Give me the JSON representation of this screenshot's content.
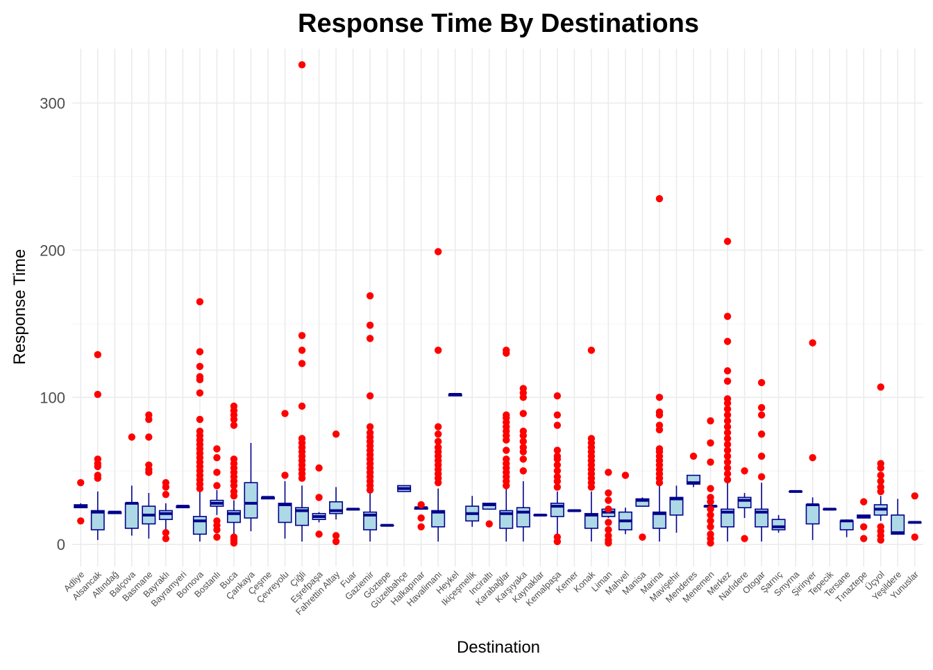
{
  "chart_data": {
    "type": "boxplot",
    "title": "Response Time By Destinations",
    "xlabel": "Destination",
    "ylabel": "Response Time",
    "ylim": [
      -15,
      337
    ],
    "yticks": [
      0,
      100,
      200,
      300
    ],
    "grid": true,
    "colors": {
      "box_fill": "#add8e6",
      "box_line": "#00008b",
      "outlier": "#ff0000",
      "grid": "#ebebeb",
      "background": "#ffffff"
    },
    "categories": [
      "Adliye",
      "Alsancak",
      "Altındağ",
      "Balçova",
      "Basmane",
      "Bayraklı",
      "Bayramyeri",
      "Bornova",
      "Bostanlı",
      "Buca",
      "Çankaya",
      "Çeşme",
      "Çevreyolu",
      "Çiğli",
      "Eşrefpaşa",
      "Fahrettin Altay",
      "Fuar",
      "Gaziemir",
      "Göztepe",
      "Güzelbahçe",
      "Halkapınar",
      "Havalimanı",
      "Heykel",
      "Ikiçeşmelik",
      "Inciraltı",
      "Karabağlar",
      "Karşıyaka",
      "Kaynaklar",
      "Kemalpaşa",
      "Kemer",
      "Konak",
      "Liman",
      "Mahvel",
      "Manisa",
      "Marina",
      "Mavişehir",
      "Menderes",
      "Menemen",
      "Merkez",
      "Narlıdere",
      "Otogar",
      "Şarnıç",
      "Smyrna",
      "Şirinyer",
      "Tepecik",
      "Tersane",
      "Tınaztepe",
      "Üçyol",
      "Yeşildere",
      "Yunuslar"
    ],
    "boxes": [
      {
        "min": 25,
        "q1": 25,
        "median": 26,
        "q3": 27,
        "max": 28,
        "outliers": [
          16,
          42
        ]
      },
      {
        "min": 3,
        "q1": 10,
        "median": 22,
        "q3": 23,
        "max": 36,
        "outliers": [
          45,
          47,
          53,
          55,
          58,
          102,
          129
        ]
      },
      {
        "min": 21,
        "q1": 21,
        "median": 22,
        "q3": 22,
        "max": 22,
        "outliers": []
      },
      {
        "min": 6,
        "q1": 11,
        "median": 28,
        "q3": 28,
        "max": 40,
        "outliers": [
          73
        ]
      },
      {
        "min": 4,
        "q1": 14,
        "median": 20,
        "q3": 26,
        "max": 35,
        "outliers": [
          49,
          51,
          54,
          73,
          85,
          88
        ]
      },
      {
        "min": 10,
        "q1": 17,
        "median": 21,
        "q3": 23,
        "max": 28,
        "outliers": [
          4,
          8,
          34,
          39,
          42
        ]
      },
      {
        "min": 25,
        "q1": 25,
        "median": 26,
        "q3": 26,
        "max": 26,
        "outliers": []
      },
      {
        "min": 2,
        "q1": 7,
        "median": 16,
        "q3": 19,
        "max": 36,
        "outliers": [
          38,
          41,
          44,
          47,
          50,
          53,
          56,
          59,
          62,
          65,
          68,
          71,
          74,
          77,
          85,
          103,
          112,
          114,
          121,
          131,
          165
        ]
      },
      {
        "min": 20,
        "q1": 26,
        "median": 28,
        "q3": 30,
        "max": 37,
        "outliers": [
          5,
          10,
          13,
          16,
          40,
          49,
          59,
          65
        ]
      },
      {
        "min": 5,
        "q1": 15,
        "median": 21,
        "q3": 23,
        "max": 30,
        "outliers": [
          1,
          3,
          5,
          33,
          36,
          40,
          43,
          46,
          49,
          52,
          55,
          58,
          81,
          85,
          88,
          91,
          94
        ]
      },
      {
        "min": 9,
        "q1": 18,
        "median": 28,
        "q3": 42,
        "max": 69,
        "outliers": []
      },
      {
        "min": 31,
        "q1": 31,
        "median": 32,
        "q3": 32,
        "max": 32,
        "outliers": []
      },
      {
        "min": 4,
        "q1": 15,
        "median": 27,
        "q3": 28,
        "max": 43,
        "outliers": [
          47,
          89
        ]
      },
      {
        "min": 2,
        "q1": 13,
        "median": 23,
        "q3": 25,
        "max": 40,
        "outliers": [
          45,
          48,
          51,
          54,
          57,
          60,
          63,
          66,
          69,
          72,
          94,
          123,
          132,
          142,
          326
        ]
      },
      {
        "min": 15,
        "q1": 17,
        "median": 19,
        "q3": 21,
        "max": 22,
        "outliers": [
          7,
          32,
          52
        ]
      },
      {
        "min": 17,
        "q1": 21,
        "median": 23,
        "q3": 29,
        "max": 39,
        "outliers": [
          2,
          6,
          75
        ]
      },
      {
        "min": 24,
        "q1": 24,
        "median": 24,
        "q3": 24,
        "max": 24,
        "outliers": []
      },
      {
        "min": 2,
        "q1": 10,
        "median": 20,
        "q3": 22,
        "max": 35,
        "outliers": [
          37,
          40,
          43,
          46,
          49,
          52,
          55,
          58,
          61,
          64,
          67,
          70,
          73,
          76,
          80,
          101,
          140,
          149,
          169
        ]
      },
      {
        "min": 13,
        "q1": 13,
        "median": 13,
        "q3": 13,
        "max": 13,
        "outliers": []
      },
      {
        "min": 36,
        "q1": 36,
        "median": 38,
        "q3": 40,
        "max": 40,
        "outliers": []
      },
      {
        "min": 24,
        "q1": 24,
        "median": 25,
        "q3": 25,
        "max": 25,
        "outliers": [
          12,
          18,
          27
        ]
      },
      {
        "min": 2,
        "q1": 12,
        "median": 22,
        "q3": 23,
        "max": 38,
        "outliers": [
          42,
          45,
          48,
          51,
          54,
          57,
          60,
          63,
          66,
          70,
          75,
          80,
          132,
          199
        ]
      },
      {
        "min": 101,
        "q1": 101,
        "median": 102,
        "q3": 102,
        "max": 102,
        "outliers": []
      },
      {
        "min": 12,
        "q1": 16,
        "median": 21,
        "q3": 26,
        "max": 33,
        "outliers": []
      },
      {
        "min": 24,
        "q1": 24,
        "median": 27,
        "q3": 28,
        "max": 28,
        "outliers": [
          14
        ]
      },
      {
        "min": 2,
        "q1": 11,
        "median": 21,
        "q3": 23,
        "max": 38,
        "outliers": [
          40,
          43,
          46,
          49,
          52,
          55,
          58,
          64,
          71,
          74,
          77,
          80,
          83,
          86,
          88,
          130,
          132
        ]
      },
      {
        "min": 2,
        "q1": 12,
        "median": 22,
        "q3": 25,
        "max": 43,
        "outliers": [
          50,
          58,
          63,
          66,
          70,
          74,
          77,
          89,
          100,
          103,
          106
        ]
      },
      {
        "min": 20,
        "q1": 20,
        "median": 20,
        "q3": 20,
        "max": 20,
        "outliers": []
      },
      {
        "min": 3,
        "q1": 19,
        "median": 26,
        "q3": 28,
        "max": 36,
        "outliers": [
          2,
          5,
          39,
          43,
          46,
          50,
          54,
          58,
          60,
          64,
          81,
          88,
          101
        ]
      },
      {
        "min": 23,
        "q1": 23,
        "median": 23,
        "q3": 23,
        "max": 23,
        "outliers": []
      },
      {
        "min": 2,
        "q1": 11,
        "median": 20,
        "q3": 21,
        "max": 36,
        "outliers": [
          39,
          42,
          45,
          48,
          51,
          54,
          57,
          60,
          63,
          66,
          69,
          72,
          132
        ]
      },
      {
        "min": 18,
        "q1": 19,
        "median": 22,
        "q3": 24,
        "max": 24,
        "outliers": [
          1,
          3,
          6,
          10,
          15,
          24,
          30,
          35,
          49
        ]
      },
      {
        "min": 7,
        "q1": 10,
        "median": 16,
        "q3": 22,
        "max": 25,
        "outliers": [
          47
        ]
      },
      {
        "min": 26,
        "q1": 26,
        "median": 30,
        "q3": 31,
        "max": 32,
        "outliers": [
          5
        ]
      },
      {
        "min": 2,
        "q1": 11,
        "median": 21,
        "q3": 22,
        "max": 40,
        "outliers": [
          42,
          45,
          48,
          51,
          54,
          57,
          60,
          63,
          65,
          78,
          81,
          88,
          90,
          100,
          235
        ]
      },
      {
        "min": 8,
        "q1": 20,
        "median": 31,
        "q3": 32,
        "max": 40,
        "outliers": []
      },
      {
        "min": 39,
        "q1": 41,
        "median": 42,
        "q3": 47,
        "max": 47,
        "outliers": [
          60
        ]
      },
      {
        "min": 26,
        "q1": 26,
        "median": 26,
        "q3": 26,
        "max": 26,
        "outliers": [
          1,
          4,
          7,
          12,
          16,
          20,
          24,
          29,
          32,
          38,
          56,
          69,
          84
        ]
      },
      {
        "min": 2,
        "q1": 12,
        "median": 22,
        "q3": 24,
        "max": 42,
        "outliers": [
          44,
          48,
          52,
          56,
          60,
          64,
          68,
          72,
          76,
          80,
          84,
          88,
          92,
          96,
          99,
          111,
          118,
          138,
          155,
          206
        ]
      },
      {
        "min": 18,
        "q1": 25,
        "median": 30,
        "q3": 32,
        "max": 35,
        "outliers": [
          4,
          50
        ]
      },
      {
        "min": 2,
        "q1": 12,
        "median": 22,
        "q3": 24,
        "max": 42,
        "outliers": [
          46,
          60,
          75,
          88,
          93,
          110
        ]
      },
      {
        "min": 8,
        "q1": 10,
        "median": 12,
        "q3": 17,
        "max": 20,
        "outliers": []
      },
      {
        "min": 36,
        "q1": 36,
        "median": 36,
        "q3": 36,
        "max": 36,
        "outliers": []
      },
      {
        "min": 3,
        "q1": 14,
        "median": 27,
        "q3": 27,
        "max": 32,
        "outliers": [
          59,
          137
        ]
      },
      {
        "min": 24,
        "q1": 24,
        "median": 24,
        "q3": 24,
        "max": 24,
        "outliers": []
      },
      {
        "min": 5,
        "q1": 10,
        "median": 16,
        "q3": 16,
        "max": 17,
        "outliers": []
      },
      {
        "min": 18,
        "q1": 18,
        "median": 19,
        "q3": 20,
        "max": 20,
        "outliers": [
          4,
          12,
          29
        ]
      },
      {
        "min": 16,
        "q1": 20,
        "median": 24,
        "q3": 27,
        "max": 33,
        "outliers": [
          3,
          6,
          9,
          12,
          36,
          39,
          43,
          47,
          52,
          55,
          107
        ]
      },
      {
        "min": 7,
        "q1": 7,
        "median": 8,
        "q3": 20,
        "max": 31,
        "outliers": []
      },
      {
        "min": 15,
        "q1": 15,
        "median": 15,
        "q3": 15,
        "max": 15,
        "outliers": [
          5,
          33
        ]
      }
    ]
  }
}
